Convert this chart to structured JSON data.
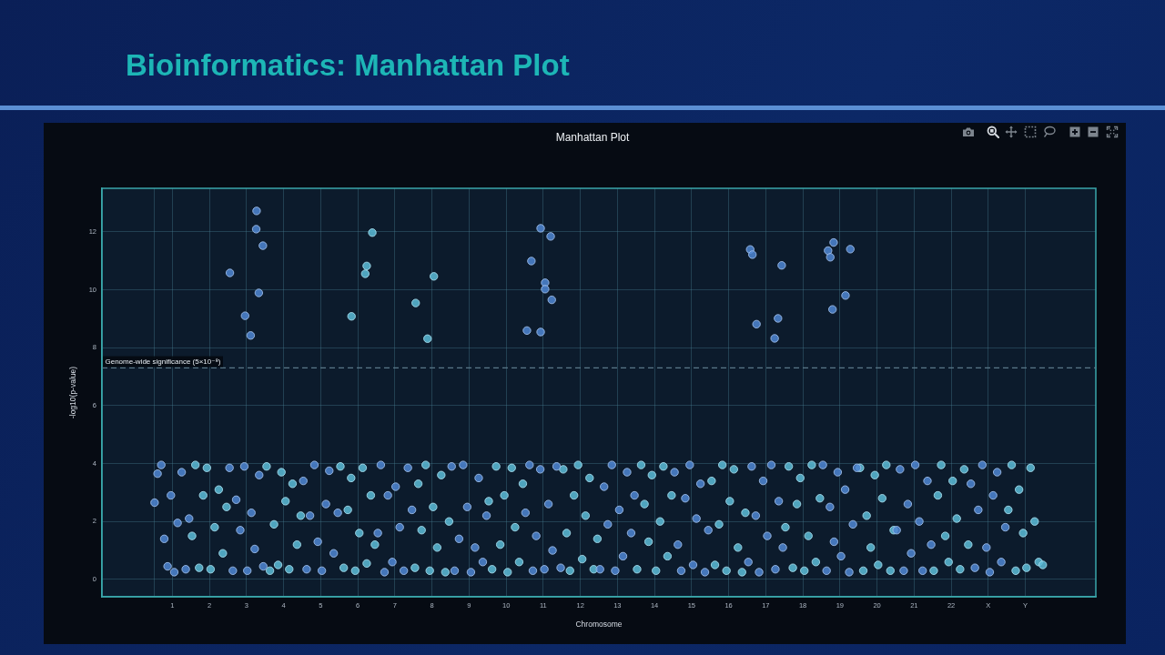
{
  "chart_data": {
    "type": "scatter",
    "title": "Bioinformatics: Manhattan Plot",
    "subtitle": "Manhattan Plot",
    "xlabel": "Chromosome",
    "ylabel": "-log10(p-value)",
    "xlim": [
      -1.4,
      25.4
    ],
    "ylim": [
      -0.6,
      13.5
    ],
    "xticks": [
      {
        "value": 0,
        "label": null
      },
      {
        "value": 0.5,
        "label": "1"
      },
      {
        "value": 1.5,
        "label": "2"
      },
      {
        "value": 2.5,
        "label": "3"
      },
      {
        "value": 3.5,
        "label": "4"
      },
      {
        "value": 4.5,
        "label": "5"
      },
      {
        "value": 5.5,
        "label": "6"
      },
      {
        "value": 6.5,
        "label": "7"
      },
      {
        "value": 7.5,
        "label": "8"
      },
      {
        "value": 8.5,
        "label": "9"
      },
      {
        "value": 9.5,
        "label": "10"
      },
      {
        "value": 10.5,
        "label": "11"
      },
      {
        "value": 11.5,
        "label": "12"
      },
      {
        "value": 12.5,
        "label": "13"
      },
      {
        "value": 13.5,
        "label": "14"
      },
      {
        "value": 14.5,
        "label": "15"
      },
      {
        "value": 15.5,
        "label": "16"
      },
      {
        "value": 16.5,
        "label": "17"
      },
      {
        "value": 17.5,
        "label": "18"
      },
      {
        "value": 18.5,
        "label": "19"
      },
      {
        "value": 19.5,
        "label": "20"
      },
      {
        "value": 20.5,
        "label": "21"
      },
      {
        "value": 21.5,
        "label": "22"
      },
      {
        "value": 22.5,
        "label": "X"
      },
      {
        "value": 23.5,
        "label": "Y"
      }
    ],
    "yticks": [
      0,
      2,
      4,
      6,
      8,
      10,
      12
    ],
    "grid": true,
    "marker": "circle",
    "ref_lines": [
      {
        "axis": "y",
        "value": 7.3,
        "label": "Genome-wide significance (5×10⁻⁸)",
        "color": "#5a7888",
        "line_style": "dashed"
      }
    ],
    "series": [
      {
        "color": "#4f86d4",
        "x": [
          0.02,
          0.1,
          0.2,
          0.28,
          0.37,
          0.46,
          0.55,
          0.64,
          0.75,
          0.86,
          0.95,
          2.04,
          2.13,
          2.22,
          2.33,
          2.44,
          2.52,
          2.63,
          2.72,
          2.84,
          2.95,
          4.03,
          4.12,
          4.21,
          4.33,
          4.42,
          4.53,
          4.64,
          4.73,
          4.85,
          4.96,
          6.04,
          6.12,
          6.22,
          6.31,
          6.43,
          6.52,
          6.63,
          6.74,
          6.85,
          6.96,
          8.03,
          8.11,
          8.23,
          8.34,
          8.45,
          8.55,
          8.66,
          8.76,
          8.87,
          8.97,
          10.02,
          10.13,
          10.22,
          10.31,
          10.42,
          10.53,
          10.64,
          10.75,
          10.86,
          10.97,
          12.03,
          12.14,
          12.24,
          12.35,
          12.44,
          12.55,
          12.65,
          12.76,
          12.87,
          12.96,
          14.04,
          14.13,
          14.22,
          14.33,
          14.45,
          14.54,
          14.63,
          14.74,
          14.86,
          14.95,
          16.03,
          16.12,
          16.23,
          16.32,
          16.43,
          16.54,
          16.65,
          16.76,
          16.85,
          16.96,
          18.04,
          18.14,
          18.23,
          18.34,
          18.44,
          18.53,
          18.64,
          18.75,
          18.85,
          18.96,
          20.03,
          20.12,
          20.22,
          20.33,
          20.42,
          20.53,
          20.64,
          20.73,
          20.86,
          20.96,
          22.03,
          22.14,
          22.23,
          22.34,
          22.45,
          22.54,
          22.63,
          22.74,
          22.85,
          22.96,
          2.05,
          2.46,
          2.61,
          2.77,
          2.76,
          2.94,
          2.83,
          10.43,
          10.7,
          10.18,
          10.55,
          10.55,
          10.73,
          10.06,
          10.43,
          16.08,
          16.14,
          16.93,
          16.25,
          16.83,
          16.74,
          18.33,
          18.18,
          18.78,
          18.24,
          18.65,
          18.3
        ],
        "values": [
          2.65,
          3.65,
          3.95,
          1.4,
          0.45,
          2.9,
          0.25,
          1.95,
          3.7,
          0.35,
          2.1,
          3.85,
          0.3,
          2.75,
          1.7,
          3.9,
          0.3,
          2.3,
          1.05,
          3.6,
          0.45,
          3.4,
          0.35,
          2.2,
          3.95,
          1.3,
          0.3,
          2.6,
          3.75,
          0.9,
          2.3,
          1.6,
          3.95,
          0.25,
          2.9,
          0.6,
          3.2,
          1.8,
          0.3,
          3.85,
          2.4,
          3.9,
          0.3,
          1.4,
          3.95,
          2.5,
          0.25,
          1.1,
          3.5,
          0.6,
          2.2,
          2.3,
          3.95,
          0.3,
          1.5,
          3.8,
          0.35,
          2.6,
          1.0,
          3.9,
          0.4,
          0.35,
          3.2,
          1.9,
          3.95,
          0.3,
          2.4,
          0.8,
          3.7,
          1.6,
          2.9,
          3.7,
          1.2,
          0.3,
          2.8,
          3.95,
          0.5,
          2.1,
          3.3,
          0.25,
          1.7,
          0.6,
          3.9,
          2.2,
          0.25,
          3.4,
          1.5,
          3.95,
          0.35,
          2.7,
          1.1,
          3.95,
          0.3,
          2.5,
          1.3,
          3.7,
          0.8,
          3.1,
          0.25,
          1.9,
          3.85,
          1.7,
          3.8,
          0.3,
          2.6,
          0.9,
          3.95,
          2.0,
          0.3,
          3.4,
          1.2,
          3.3,
          0.4,
          2.4,
          3.95,
          1.1,
          0.25,
          2.9,
          3.7,
          0.6,
          1.8,
          10.58,
          9.1,
          8.42,
          12.72,
          12.09,
          11.52,
          9.89,
          12.12,
          11.84,
          10.99,
          10.24,
          10.02,
          9.65,
          8.59,
          8.54,
          11.39,
          11.21,
          10.84,
          8.81,
          9.01,
          8.32,
          11.63,
          11.35,
          11.4,
          11.12,
          9.8,
          9.32
        ]
      },
      {
        "color": "#5cbcd8",
        "x": [
          1.03,
          1.12,
          1.22,
          1.33,
          1.43,
          1.53,
          1.64,
          1.75,
          1.86,
          1.96,
          3.04,
          3.13,
          3.24,
          3.35,
          3.44,
          3.55,
          3.65,
          3.74,
          3.86,
          3.96,
          5.03,
          5.12,
          5.23,
          5.32,
          5.43,
          5.54,
          5.63,
          5.74,
          5.85,
          5.96,
          7.04,
          7.13,
          7.22,
          7.33,
          7.44,
          7.53,
          7.64,
          7.75,
          7.86,
          7.96,
          9.03,
          9.12,
          9.23,
          9.34,
          9.45,
          9.54,
          9.65,
          9.74,
          9.85,
          9.95,
          11.04,
          11.13,
          11.22,
          11.33,
          11.44,
          11.55,
          11.64,
          11.75,
          11.86,
          11.96,
          13.03,
          13.14,
          13.23,
          13.34,
          13.43,
          13.54,
          13.65,
          13.74,
          13.85,
          13.96,
          15.04,
          15.13,
          15.24,
          15.33,
          15.44,
          15.53,
          15.64,
          15.75,
          15.86,
          15.95,
          17.03,
          17.12,
          17.23,
          17.34,
          17.43,
          17.54,
          17.65,
          17.74,
          17.85,
          17.96,
          19.04,
          19.13,
          19.22,
          19.33,
          19.44,
          19.53,
          19.64,
          19.75,
          19.86,
          19.95,
          21.03,
          21.14,
          21.23,
          21.34,
          21.43,
          21.54,
          21.65,
          21.74,
          21.85,
          21.96,
          23.04,
          23.13,
          23.24,
          23.33,
          23.44,
          23.53,
          23.64,
          23.75,
          23.86,
          23.97,
          5.33,
          5.89,
          5.74,
          5.7,
          7.55,
          7.06,
          7.38
        ],
        "values": [
          1.5,
          3.95,
          0.4,
          2.9,
          3.85,
          0.35,
          1.8,
          3.1,
          0.9,
          2.5,
          3.9,
          0.3,
          1.9,
          0.5,
          3.7,
          2.7,
          0.35,
          3.3,
          1.2,
          2.2,
          3.9,
          0.4,
          2.4,
          3.5,
          0.3,
          1.6,
          3.85,
          0.55,
          2.9,
          1.2,
          0.4,
          3.3,
          1.7,
          3.95,
          0.3,
          2.5,
          1.1,
          3.6,
          0.25,
          2.0,
          2.7,
          0.35,
          3.9,
          1.2,
          2.9,
          0.25,
          3.85,
          1.8,
          0.6,
          3.3,
          3.8,
          1.6,
          0.3,
          2.9,
          3.95,
          0.7,
          2.2,
          3.5,
          0.35,
          1.4,
          0.35,
          3.95,
          2.6,
          1.3,
          3.6,
          0.3,
          2.0,
          3.9,
          0.8,
          2.9,
          3.4,
          0.5,
          1.9,
          3.95,
          0.3,
          2.7,
          3.8,
          1.1,
          0.25,
          2.3,
          1.8,
          3.9,
          0.4,
          2.6,
          3.5,
          0.3,
          1.5,
          3.95,
          0.6,
          2.8,
          3.85,
          0.3,
          2.2,
          1.1,
          3.6,
          0.5,
          2.8,
          3.95,
          0.3,
          1.7,
          0.3,
          2.9,
          3.95,
          1.5,
          0.6,
          3.4,
          2.1,
          0.35,
          3.8,
          1.2,
          2.4,
          3.95,
          0.3,
          3.1,
          1.6,
          0.4,
          3.85,
          2.0,
          0.6,
          0.5,
          9.08,
          11.97,
          10.82,
          10.55,
          10.46,
          9.54,
          8.31
        ]
      }
    ]
  }
}
